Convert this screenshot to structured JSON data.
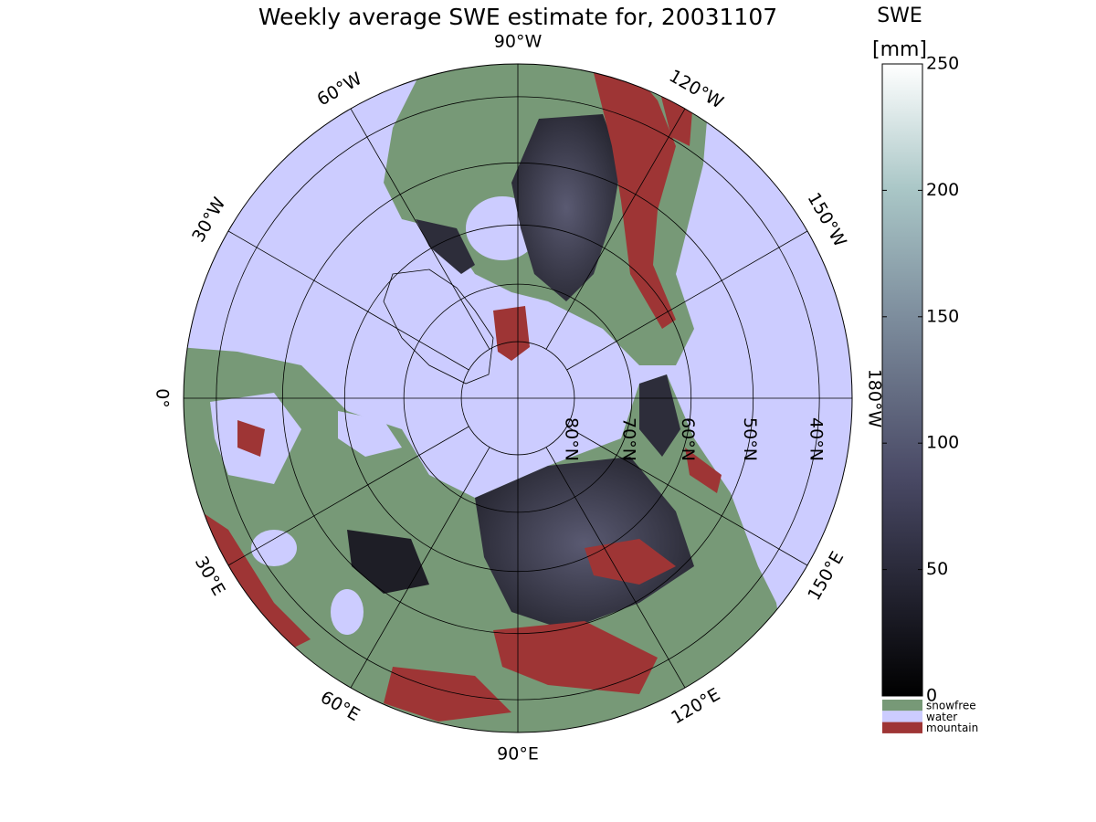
{
  "title": "Weekly average SWE estimate for, 20031107",
  "colorbar": {
    "label": "SWE",
    "unit": "[mm]",
    "clim": [
      0,
      250
    ],
    "ticks": [
      0,
      50,
      100,
      150,
      200,
      250
    ]
  },
  "legend": [
    {
      "name": "snowfree",
      "color": "#779977"
    },
    {
      "name": "water",
      "color": "#ccccff"
    },
    {
      "name": "mountain",
      "color": "#9e3535"
    }
  ],
  "map": {
    "projection": "stereographic",
    "lat_ticks": [
      {
        "value": 80,
        "label": "80°N"
      },
      {
        "value": 70,
        "label": "70°N"
      },
      {
        "value": 60,
        "label": "60°N"
      },
      {
        "value": 50,
        "label": "50°N"
      },
      {
        "value": 40,
        "label": "40°N"
      }
    ],
    "lon_ticks": [
      {
        "value": 0,
        "label": "0°"
      },
      {
        "value": -30,
        "label": "30°W"
      },
      {
        "value": -60,
        "label": "60°W"
      },
      {
        "value": -90,
        "label": "90°W"
      },
      {
        "value": -120,
        "label": "120°W"
      },
      {
        "value": -150,
        "label": "150°W"
      },
      {
        "value": -180,
        "label": "180°W"
      },
      {
        "value": 150,
        "label": "150°E"
      },
      {
        "value": 120,
        "label": "120°E"
      },
      {
        "value": 90,
        "label": "90°E"
      },
      {
        "value": 60,
        "label": "60°E"
      },
      {
        "value": 30,
        "label": "30°E"
      }
    ]
  }
}
